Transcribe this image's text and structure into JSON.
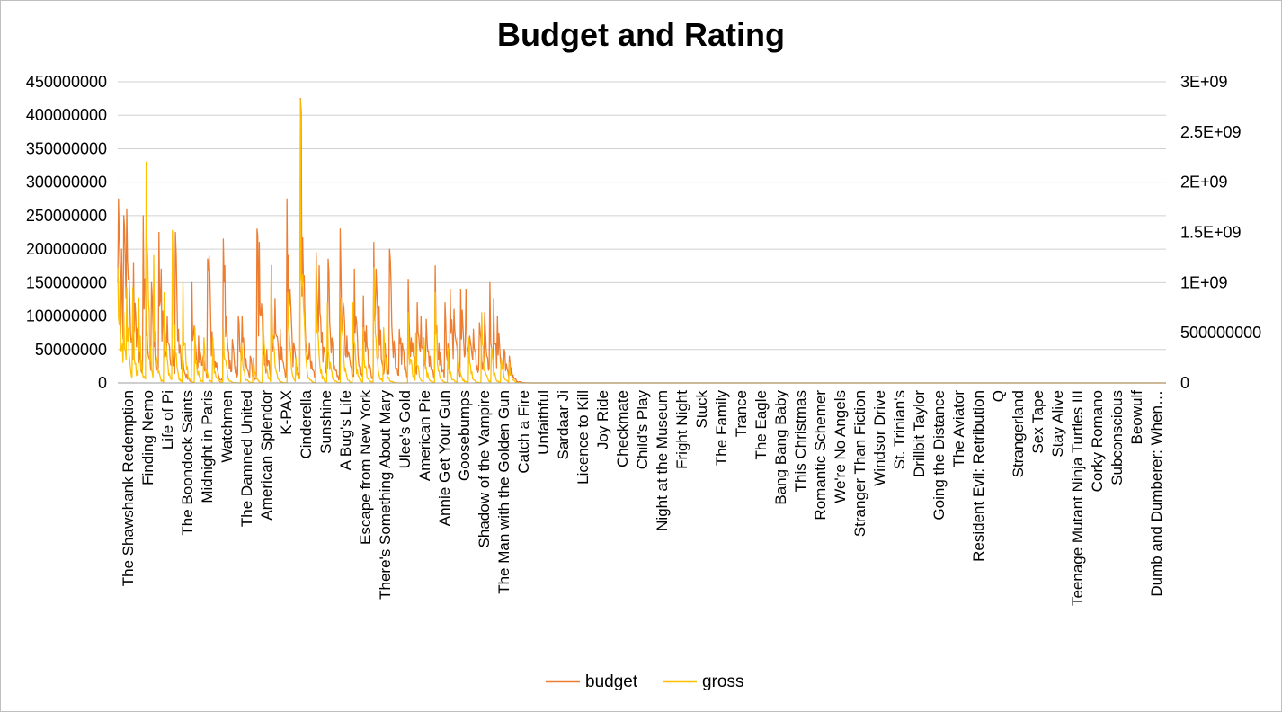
{
  "chart_data": {
    "type": "line",
    "title": "Budget and Rating",
    "grid": true,
    "legend_position": "bottom",
    "left_axis": {
      "ylim": [
        0,
        450000000
      ],
      "tick_values": [
        0,
        50000000,
        100000000,
        150000000,
        200000000,
        250000000,
        300000000,
        350000000,
        400000000,
        450000000
      ],
      "tick_labels": [
        "0",
        "50000000",
        "100000000",
        "150000000",
        "200000000",
        "250000000",
        "300000000",
        "350000000",
        "400000000",
        "450000000"
      ]
    },
    "right_axis": {
      "ylim": [
        0,
        3000000000
      ],
      "tick_values": [
        0,
        500000000,
        1000000000,
        1500000000,
        2000000000,
        2500000000,
        3000000000
      ],
      "tick_labels": [
        "0",
        "500000000",
        "1E+09",
        "1.5E+09",
        "2E+09",
        "2.5E+09",
        "3E+09"
      ]
    },
    "categories": [
      "The Shawshank Redemption",
      "Finding Nemo",
      "Life of Pi",
      "The Boondock Saints",
      "Midnight in Paris",
      "Watchmen",
      "The Damned United",
      "American Splendor",
      "K-PAX",
      "Cinderella",
      "Sunshine",
      "A Bug's Life",
      "Escape from New York",
      "There's Something About Mary",
      "Ulee's Gold",
      "American Pie",
      "Annie Get Your Gun",
      "Goosebumps",
      "Shadow of the Vampire",
      "The Man with the Golden Gun",
      "Catch a Fire",
      "Unfaithful",
      "Sardaar Ji",
      "Licence to Kill",
      "Joy Ride",
      "Checkmate",
      "Child's Play",
      "Night at the Museum",
      "Fright Night",
      "Stuck",
      "The Family",
      "Trance",
      "The Eagle",
      "Bang Bang Baby",
      "This Christmas",
      "Romantic Schemer",
      "We're No Angels",
      "Stranger Than Fiction",
      "Windsor Drive",
      "St. Trinian's",
      "Drillbit Taylor",
      "Going the Distance",
      "The Aviator",
      "Resident Evil: Retribution",
      "Q",
      "Strangerland",
      "Sex Tape",
      "Stay Alive",
      "Teenage Mutant Ninja Turtles III",
      "Corky Romano",
      "Subconscious",
      "Beowulf",
      "Dumb and Dumberer: When…"
    ],
    "series": [
      {
        "name": "budget",
        "color": "#ED7D31",
        "axis": "left",
        "peaks": [
          [
            0.0,
            150000000
          ],
          [
            0.05,
            275000000
          ],
          [
            0.13,
            175000000
          ],
          [
            0.2,
            200000000
          ],
          [
            0.3,
            250000000
          ],
          [
            0.38,
            185000000
          ],
          [
            0.46,
            260000000
          ],
          [
            0.56,
            160000000
          ],
          [
            0.67,
            60000000
          ],
          [
            0.8,
            180000000
          ],
          [
            1.0,
            80000000
          ],
          [
            1.1,
            55000000
          ],
          [
            1.3,
            250000000
          ],
          [
            1.55,
            40000000
          ],
          [
            1.7,
            150000000
          ],
          [
            2.0,
            30000000
          ],
          [
            2.1,
            225000000
          ],
          [
            2.2,
            170000000
          ],
          [
            2.5,
            100000000
          ],
          [
            2.75,
            50000000
          ],
          [
            2.9,
            225000000
          ],
          [
            3.05,
            80000000
          ],
          [
            3.3,
            35000000
          ],
          [
            3.75,
            150000000
          ],
          [
            3.85,
            85000000
          ],
          [
            4.1,
            70000000
          ],
          [
            4.3,
            40000000
          ],
          [
            4.55,
            185000000
          ],
          [
            4.6,
            190000000
          ],
          [
            4.7,
            100000000
          ],
          [
            5.0,
            30000000
          ],
          [
            5.35,
            215000000
          ],
          [
            5.5,
            100000000
          ],
          [
            5.8,
            65000000
          ],
          [
            6.1,
            100000000
          ],
          [
            6.3,
            100000000
          ],
          [
            6.7,
            40000000
          ],
          [
            7.05,
            230000000
          ],
          [
            7.15,
            210000000
          ],
          [
            7.3,
            100000000
          ],
          [
            7.55,
            50000000
          ],
          [
            7.75,
            175000000
          ],
          [
            7.95,
            125000000
          ],
          [
            8.2,
            80000000
          ],
          [
            8.55,
            275000000
          ],
          [
            8.7,
            140000000
          ],
          [
            8.9,
            60000000
          ],
          [
            9.25,
            425000000
          ],
          [
            9.3,
            130000000
          ],
          [
            9.4,
            150000000
          ],
          [
            9.7,
            60000000
          ],
          [
            10.05,
            195000000
          ],
          [
            10.2,
            175000000
          ],
          [
            10.45,
            50000000
          ],
          [
            10.65,
            185000000
          ],
          [
            10.85,
            60000000
          ],
          [
            11.25,
            230000000
          ],
          [
            11.4,
            120000000
          ],
          [
            11.6,
            70000000
          ],
          [
            11.95,
            170000000
          ],
          [
            12.1,
            70000000
          ],
          [
            12.4,
            130000000
          ],
          [
            12.55,
            85000000
          ],
          [
            12.95,
            210000000
          ],
          [
            13.05,
            170000000
          ],
          [
            13.2,
            115000000
          ],
          [
            13.5,
            60000000
          ],
          [
            13.75,
            200000000
          ],
          [
            13.9,
            60000000
          ],
          [
            14.25,
            80000000
          ],
          [
            14.4,
            60000000
          ],
          [
            14.7,
            155000000
          ],
          [
            14.9,
            60000000
          ],
          [
            15.15,
            120000000
          ],
          [
            15.35,
            100000000
          ],
          [
            15.6,
            95000000
          ],
          [
            15.8,
            40000000
          ],
          [
            16.05,
            175000000
          ],
          [
            16.25,
            60000000
          ],
          [
            16.55,
            120000000
          ],
          [
            16.8,
            140000000
          ],
          [
            17.0,
            110000000
          ],
          [
            17.35,
            140000000
          ],
          [
            17.6,
            140000000
          ],
          [
            17.8,
            70000000
          ],
          [
            18.0,
            80000000
          ],
          [
            18.3,
            90000000
          ],
          [
            18.55,
            105000000
          ],
          [
            18.8,
            150000000
          ],
          [
            19.0,
            125000000
          ],
          [
            19.2,
            100000000
          ],
          [
            19.55,
            50000000
          ],
          [
            19.8,
            40000000
          ]
        ]
      },
      {
        "name": "gross",
        "color": "#FFC000",
        "axis": "right",
        "peaks": [
          [
            0.0,
            1150000000
          ],
          [
            0.1,
            1050000000
          ],
          [
            0.3,
            700000000
          ],
          [
            0.45,
            950000000
          ],
          [
            0.75,
            950000000
          ],
          [
            1.05,
            850000000
          ],
          [
            1.45,
            2200000000
          ],
          [
            1.8,
            1270000000
          ],
          [
            2.35,
            900000000
          ],
          [
            2.75,
            1520000000
          ],
          [
            3.3,
            1000000000
          ],
          [
            3.9,
            550000000
          ],
          [
            4.35,
            450000000
          ],
          [
            4.8,
            450000000
          ],
          [
            5.35,
            550000000
          ],
          [
            6.25,
            400000000
          ],
          [
            6.85,
            250000000
          ],
          [
            7.35,
            700000000
          ],
          [
            7.75,
            1170000000
          ],
          [
            8.6,
            900000000
          ],
          [
            9.0,
            250000000
          ],
          [
            9.25,
            2820000000
          ],
          [
            10.05,
            1170000000
          ],
          [
            10.6,
            800000000
          ],
          [
            11.3,
            850000000
          ],
          [
            11.9,
            800000000
          ],
          [
            12.4,
            550000000
          ],
          [
            12.95,
            1150000000
          ],
          [
            13.45,
            550000000
          ],
          [
            14.7,
            700000000
          ],
          [
            15.05,
            500000000
          ],
          [
            15.5,
            450000000
          ],
          [
            16.05,
            900000000
          ],
          [
            16.7,
            350000000
          ],
          [
            17.2,
            450000000
          ],
          [
            17.75,
            450000000
          ],
          [
            18.4,
            700000000
          ],
          [
            18.9,
            350000000
          ],
          [
            19.4,
            250000000
          ],
          [
            19.8,
            200000000
          ]
        ]
      }
    ]
  }
}
